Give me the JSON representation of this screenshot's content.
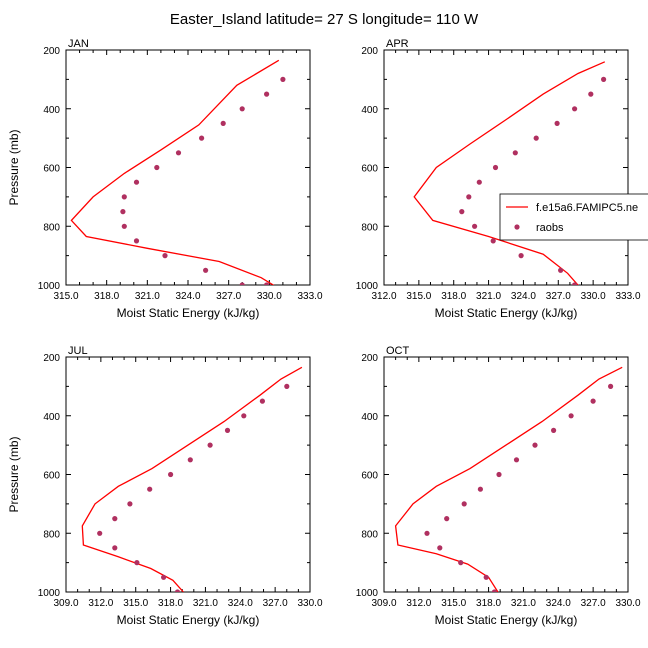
{
  "title": "Easter_Island  latitude= 27 S longitude= 110 W",
  "colors": {
    "model": "#ff0000",
    "obs": "#b03060"
  },
  "chart_data": [
    {
      "type": "line",
      "panel_label": "JAN",
      "xlabel": "Moist Static Energy (kJ/kg)",
      "ylabel": "Pressure (mb)",
      "xlim": [
        315.0,
        333.0
      ],
      "xticks": [
        "315.0",
        "318.0",
        "321.0",
        "324.0",
        "327.0",
        "330.0",
        "333.0"
      ],
      "ylim": [
        200,
        1000
      ],
      "yticks": [
        "200",
        "400",
        "600",
        "800",
        "1000"
      ],
      "y_reversed": true,
      "series": [
        {
          "name": "f.e15a6.FAMIPC5.ne",
          "kind": "line",
          "x": [
            330.7,
            327.6,
            324.8,
            322.0,
            319.3,
            317.0,
            315.4,
            316.5,
            321.0,
            326.3,
            329.4,
            331.0
          ],
          "y": [
            235,
            320,
            455,
            540,
            620,
            700,
            780,
            835,
            875,
            920,
            975,
            1020
          ]
        },
        {
          "name": "raobs",
          "kind": "scatter",
          "x": [
            331.0,
            329.8,
            328.0,
            326.6,
            325.0,
            323.3,
            321.7,
            320.2,
            319.3,
            319.2,
            319.3,
            320.2,
            322.3,
            325.3,
            328.0,
            329.8
          ],
          "y": [
            300,
            350,
            400,
            450,
            500,
            550,
            600,
            650,
            700,
            750,
            800,
            850,
            900,
            950,
            1000,
            1000
          ]
        }
      ]
    },
    {
      "type": "line",
      "panel_label": "APR",
      "xlabel": "Moist Static Energy (kJ/kg)",
      "ylabel": "",
      "xlim": [
        312.0,
        333.0
      ],
      "xticks": [
        "312.0",
        "315.0",
        "318.0",
        "321.0",
        "324.0",
        "327.0",
        "330.0",
        "333.0"
      ],
      "ylim": [
        200,
        1000
      ],
      "yticks": [
        "200",
        "400",
        "600",
        "800",
        "1000"
      ],
      "y_reversed": true,
      "series": [
        {
          "name": "f.e15a6.FAMIPC5.ne",
          "kind": "line",
          "x": [
            331.0,
            328.7,
            325.7,
            322.4,
            319.4,
            316.5,
            314.6,
            316.2,
            321.0,
            325.7,
            327.8,
            328.8
          ],
          "y": [
            240,
            280,
            350,
            440,
            520,
            600,
            700,
            780,
            835,
            895,
            960,
            1005
          ]
        },
        {
          "name": "raobs",
          "kind": "scatter",
          "x": [
            330.9,
            329.8,
            328.4,
            326.9,
            325.1,
            323.3,
            321.6,
            320.2,
            319.3,
            318.7,
            319.8,
            321.4,
            323.8,
            327.2,
            328.4
          ],
          "y": [
            300,
            350,
            400,
            450,
            500,
            550,
            600,
            650,
            700,
            750,
            800,
            850,
            900,
            950,
            1000
          ]
        }
      ],
      "legend": {
        "position": "right",
        "entries": [
          "f.e15a6.FAMIPC5.ne",
          "raobs"
        ]
      }
    },
    {
      "type": "line",
      "panel_label": "JUL",
      "xlabel": "Moist Static Energy (kJ/kg)",
      "ylabel": "Pressure (mb)",
      "xlim": [
        309.0,
        330.0
      ],
      "xticks": [
        "309.0",
        "312.0",
        "315.0",
        "318.0",
        "321.0",
        "324.0",
        "327.0",
        "330.0"
      ],
      "ylim": [
        200,
        1000
      ],
      "yticks": [
        "200",
        "400",
        "600",
        "800",
        "1000"
      ],
      "y_reversed": true,
      "series": [
        {
          "name": "f.e15a6.FAMIPC5.ne",
          "kind": "line",
          "x": [
            329.3,
            327.5,
            325.7,
            322.6,
            319.5,
            316.4,
            313.5,
            311.5,
            310.4,
            310.5,
            313.5,
            316.3,
            318.2,
            319.1
          ],
          "y": [
            235,
            275,
            330,
            420,
            500,
            580,
            640,
            700,
            775,
            840,
            880,
            920,
            960,
            1000
          ]
        },
        {
          "name": "raobs",
          "kind": "scatter",
          "x": [
            328.0,
            325.9,
            324.3,
            322.9,
            321.4,
            319.7,
            318.0,
            316.2,
            314.5,
            313.2,
            311.9,
            313.2,
            315.1,
            317.4,
            318.6
          ],
          "y": [
            300,
            350,
            400,
            450,
            500,
            550,
            600,
            650,
            700,
            750,
            800,
            850,
            900,
            950,
            1000
          ]
        }
      ]
    },
    {
      "type": "line",
      "panel_label": "OCT",
      "xlabel": "Moist Static Energy (kJ/kg)",
      "ylabel": "",
      "xlim": [
        309.0,
        330.0
      ],
      "xticks": [
        "309.0",
        "312.0",
        "315.0",
        "318.0",
        "321.0",
        "324.0",
        "327.0",
        "330.0"
      ],
      "ylim": [
        200,
        1000
      ],
      "yticks": [
        "200",
        "400",
        "600",
        "800",
        "1000"
      ],
      "y_reversed": true,
      "series": [
        {
          "name": "f.e15a6.FAMIPC5.ne",
          "kind": "line",
          "x": [
            329.5,
            327.5,
            325.7,
            322.6,
            319.5,
            316.4,
            313.5,
            311.5,
            310.0,
            310.2,
            313.5,
            316.2,
            318.0,
            318.8
          ],
          "y": [
            235,
            275,
            330,
            420,
            500,
            580,
            640,
            700,
            775,
            840,
            870,
            905,
            950,
            1000
          ]
        },
        {
          "name": "raobs",
          "kind": "scatter",
          "x": [
            328.5,
            327.0,
            325.1,
            323.6,
            322.0,
            320.4,
            318.9,
            317.3,
            315.9,
            314.4,
            312.7,
            313.8,
            315.6,
            317.8,
            318.5
          ],
          "y": [
            300,
            350,
            400,
            450,
            500,
            550,
            600,
            650,
            700,
            750,
            800,
            850,
            900,
            950,
            1000
          ]
        }
      ]
    }
  ]
}
